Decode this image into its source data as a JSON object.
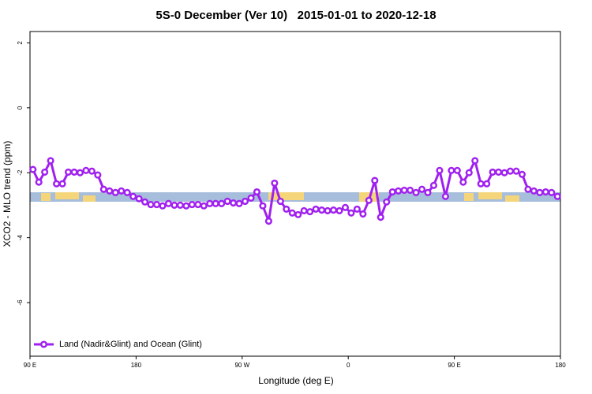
{
  "chart_data": {
    "type": "line",
    "title": "5S-0 December (Ver 10)   2015-01-01 to 2020-12-18",
    "x_label": "Longitude (deg E)",
    "y_label": "XCO2 - MLO trend (ppm)",
    "xlim": [
      90,
      540
    ],
    "xticks": [
      {
        "value": 90,
        "label": "90 E"
      },
      180,
      {
        "value": 270,
        "label": "90 W"
      },
      {
        "value": 360,
        "label": "0"
      },
      {
        "value": 450,
        "label": "90 E"
      },
      {
        "value": 540,
        "label": "180"
      }
    ],
    "ylim": [
      -7.65,
      2.35
    ],
    "yticks": [
      2,
      0,
      -2,
      -4,
      -6
    ],
    "legend": "bottom-left",
    "x": [
      92.5,
      97.5,
      102.5,
      107.5,
      112.5,
      117.5,
      122.5,
      127.5,
      132.5,
      137.5,
      142.5,
      147.5,
      152.5,
      157.5,
      162.5,
      167.5,
      172.5,
      177.5,
      182.5,
      187.5,
      192.5,
      197.5,
      202.5,
      207.5,
      212.5,
      217.5,
      222.5,
      227.5,
      232.5,
      237.5,
      242.5,
      247.5,
      252.5,
      257.5,
      262.5,
      267.5,
      272.5,
      277.5,
      282.5,
      287.5,
      292.5,
      297.5,
      302.5,
      307.5,
      312.5,
      317.5,
      322.5,
      327.5,
      332.5,
      337.5,
      342.5,
      347.5,
      352.5,
      357.5,
      362.5,
      367.5,
      372.5,
      377.5,
      382.5,
      387.5,
      392.5,
      397.5,
      402.5,
      407.5,
      412.5,
      417.5,
      422.5,
      427.5,
      432.5,
      437.5,
      442.5,
      447.5,
      452.5,
      457.5,
      462.5,
      467.5,
      472.5,
      477.5,
      482.5,
      487.5,
      492.5,
      497.5,
      502.5,
      507.5,
      512.5,
      517.5,
      522.5,
      527.5,
      532.5,
      537.5
    ],
    "series": [
      {
        "name": "Land (Nadir&Glint) and Ocean (Glint)",
        "color": "#a020f0",
        "values": [
          -1.9,
          -2.29,
          -1.98,
          -1.63,
          -2.34,
          -2.34,
          -1.98,
          -1.98,
          -2.0,
          -1.93,
          -1.95,
          -2.07,
          -2.51,
          -2.56,
          -2.61,
          -2.56,
          -2.61,
          -2.73,
          -2.8,
          -2.9,
          -2.98,
          -2.98,
          -3.02,
          -2.95,
          -3.0,
          -3.0,
          -3.02,
          -2.98,
          -2.98,
          -3.02,
          -2.95,
          -2.95,
          -2.95,
          -2.88,
          -2.93,
          -2.95,
          -2.88,
          -2.78,
          -2.59,
          -3.02,
          -3.49,
          -2.32,
          -2.88,
          -3.12,
          -3.24,
          -3.29,
          -3.17,
          -3.2,
          -3.12,
          -3.15,
          -3.17,
          -3.15,
          -3.17,
          -3.07,
          -3.24,
          -3.12,
          -3.27,
          -2.85,
          -2.24,
          -3.37,
          -2.9,
          -2.59,
          -2.56,
          -2.54,
          -2.54,
          -2.61,
          -2.51,
          -2.61,
          -2.39,
          -1.93,
          -2.73,
          -1.93,
          -1.93,
          -2.29,
          -2.0,
          -1.63,
          -2.34,
          -2.34,
          -1.98,
          -1.98,
          -2.0,
          -1.95,
          -1.95,
          -2.05,
          -2.51,
          -2.56,
          -2.61,
          -2.59,
          -2.61,
          -2.73
        ]
      }
    ]
  }
}
